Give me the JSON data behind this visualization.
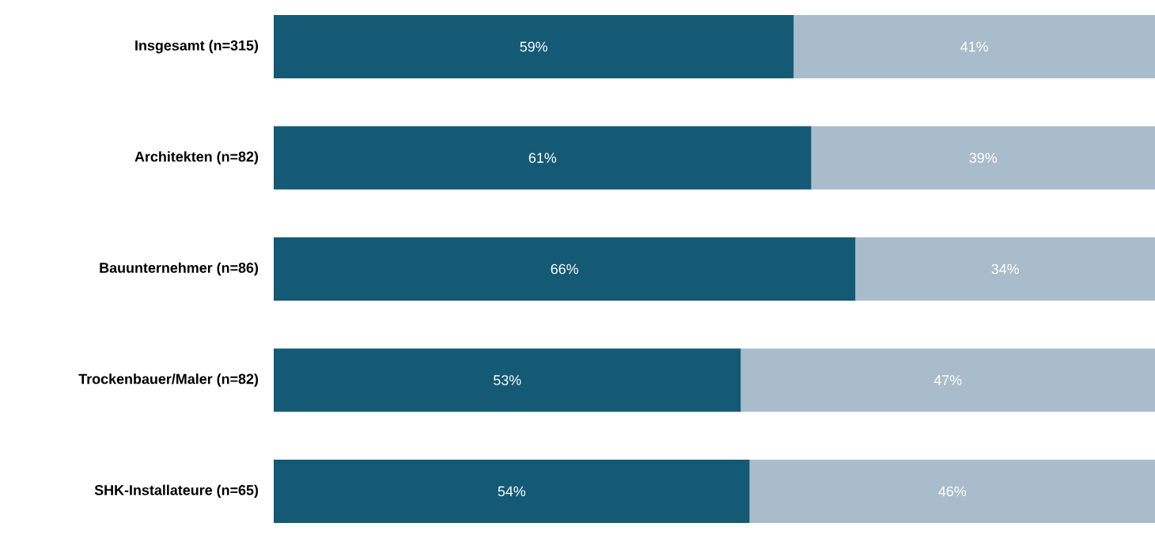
{
  "chart_data": {
    "type": "bar",
    "orientation": "horizontal",
    "stacked": true,
    "categories": [
      "Insgesamt (n=315)",
      "Architekten (n=82)",
      "Bauunternehmer (n=86)",
      "Trockenbauer/Maler (n=82)",
      "SHK-Installateure (n=65)"
    ],
    "xlim": [
      0,
      100
    ],
    "series": [
      {
        "color": "#145a74",
        "values": [
          59,
          61,
          66,
          53,
          54
        ],
        "value_labels": [
          "59%",
          "61%",
          "66%",
          "53%",
          "54%"
        ]
      },
      {
        "color": "#a8bccb",
        "values": [
          41,
          39,
          34,
          47,
          46
        ],
        "value_labels": [
          "41%",
          "39%",
          "34%",
          "47%",
          "46%"
        ]
      }
    ]
  }
}
